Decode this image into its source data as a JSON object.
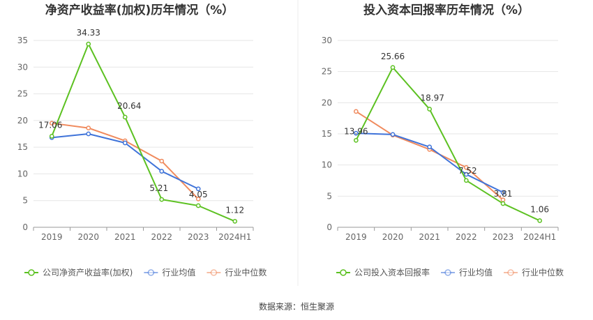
{
  "source_label": "数据来源：恒生聚源",
  "colors": {
    "company": "#5cc121",
    "avg": "#3f73d9",
    "median": "#f08a5d",
    "grid": "#e6e6e6",
    "axis": "#999999"
  },
  "chart_data": [
    {
      "type": "line",
      "title": "净资产收益率(加权)历年情况（%）",
      "categories": [
        "2019",
        "2020",
        "2021",
        "2022",
        "2023",
        "2024H1"
      ],
      "ylim": [
        0,
        35
      ],
      "yticks": [
        0,
        5,
        10,
        15,
        20,
        25,
        30,
        35
      ],
      "grid": true,
      "legend": "bottom",
      "series": [
        {
          "name": "公司净资产收益率(加权)",
          "key": "company",
          "values": [
            17.06,
            34.33,
            20.64,
            5.21,
            4.05,
            1.12
          ],
          "labels": [
            "17.06",
            "34.33",
            "20.64",
            "5.21",
            "4.05",
            "1.12"
          ]
        },
        {
          "name": "行业均值",
          "key": "avg",
          "values": [
            16.8,
            17.5,
            15.8,
            10.5,
            7.2,
            null
          ]
        },
        {
          "name": "行业中位数",
          "key": "median",
          "values": [
            19.5,
            18.6,
            16.2,
            12.4,
            5.3,
            null
          ]
        }
      ]
    },
    {
      "type": "line",
      "title": "投入资本回报率历年情况（%）",
      "categories": [
        "2019",
        "2020",
        "2021",
        "2022",
        "2023",
        "2024H1"
      ],
      "ylim": [
        0,
        30
      ],
      "yticks": [
        0,
        5,
        10,
        15,
        20,
        25,
        30
      ],
      "grid": true,
      "legend": "bottom",
      "series": [
        {
          "name": "公司投入资本回报率",
          "key": "company",
          "values": [
            13.96,
            25.66,
            18.97,
            7.52,
            3.81,
            1.06
          ],
          "labels": [
            "13.96",
            "25.66",
            "18.97",
            "7.52",
            "3.81",
            "1.06"
          ]
        },
        {
          "name": "行业均值",
          "key": "avg",
          "values": [
            15.1,
            14.9,
            12.9,
            8.5,
            5.6,
            null
          ]
        },
        {
          "name": "行业中位数",
          "key": "median",
          "values": [
            18.6,
            14.8,
            12.5,
            9.6,
            4.4,
            null
          ]
        }
      ]
    }
  ]
}
